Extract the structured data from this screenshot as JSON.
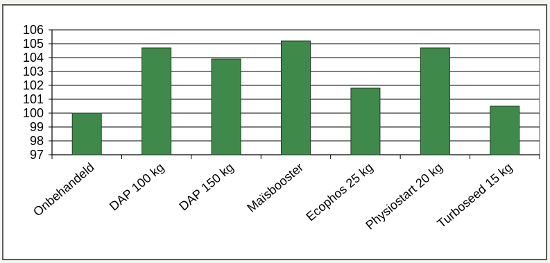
{
  "chart_data": {
    "type": "bar",
    "categories": [
      "Onbehandeld",
      "DAP 100 kg",
      "DAP 150 kg",
      "Maïsbooster",
      "Ecophos 25 kg",
      "Physiostart 20 kg",
      "Turboseed 15 kg"
    ],
    "values": [
      100.0,
      104.7,
      103.9,
      105.2,
      101.8,
      104.7,
      100.5
    ],
    "yticks": [
      "97",
      "98",
      "99",
      "100",
      "101",
      "102",
      "103",
      "104",
      "105",
      "106"
    ],
    "ylim": [
      97,
      106
    ],
    "grid": true,
    "bar_color": "#3f8a4a",
    "bar_edge_color": "#1f3f22",
    "title": "",
    "xlabel": "",
    "ylabel": ""
  }
}
